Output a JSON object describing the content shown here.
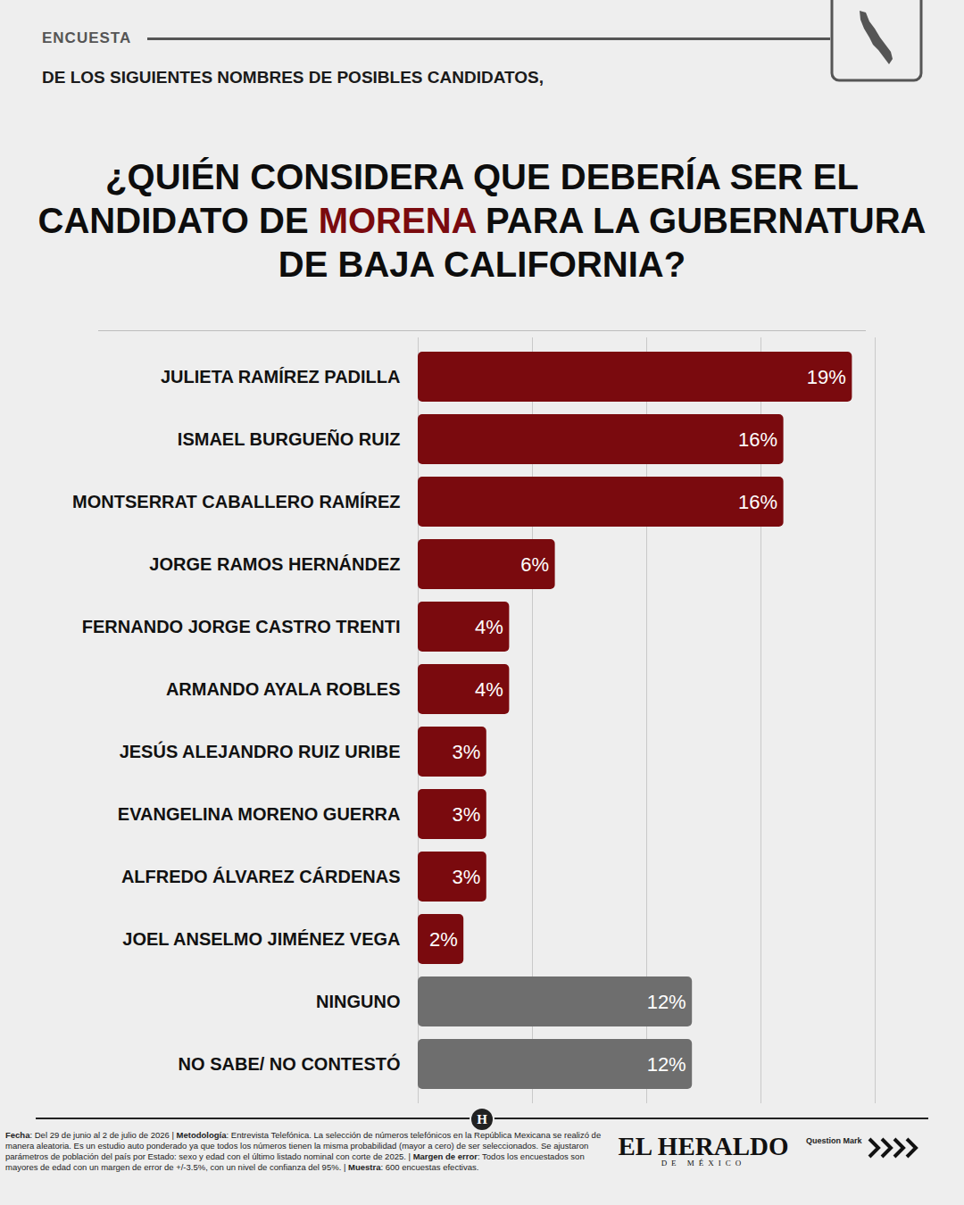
{
  "header": {
    "label": "ENCUESTA",
    "subtitle": "DE LOS SIGUIENTES NOMBRES DE POSIBLES CANDIDATOS,"
  },
  "chart_data": {
    "type": "bar",
    "orientation": "horizontal",
    "title": "¿QUIÉN CONSIDERA QUE DEBERÍA SER EL CANDIDATO DE MORENA PARA LA GUBERNATURA DE BAJA CALIFORNIA?",
    "title_highlight": "MORENA",
    "categories": [
      "JULIETA RAMÍREZ PADILLA",
      "ISMAEL BURGUEÑO RUIZ",
      "MONTSERRAT CABALLERO RAMÍREZ",
      "JORGE RAMOS HERNÁNDEZ",
      "FERNANDO JORGE CASTRO TRENTI",
      "ARMANDO AYALA ROBLES",
      "JESÚS ALEJANDRO RUIZ URIBE",
      "EVANGELINA MORENO GUERRA",
      "ALFREDO ÁLVAREZ CÁRDENAS",
      "JOEL ANSELMO JIMÉNEZ VEGA",
      "NINGUNO",
      "NO SABE/ NO CONTESTÓ"
    ],
    "values": [
      19,
      16,
      16,
      6,
      4,
      4,
      3,
      3,
      3,
      2,
      12,
      12
    ],
    "value_labels": [
      "19%",
      "16%",
      "16%",
      "6%",
      "4%",
      "4%",
      "3%",
      "3%",
      "3%",
      "2%",
      "12%",
      "12%"
    ],
    "colors": [
      "#7a0a0e",
      "#7a0a0e",
      "#7a0a0e",
      "#7a0a0e",
      "#7a0a0e",
      "#7a0a0e",
      "#7a0a0e",
      "#7a0a0e",
      "#7a0a0e",
      "#7a0a0e",
      "#6e6e6e",
      "#6e6e6e"
    ],
    "xlim": [
      0,
      20
    ],
    "xticks": [
      0,
      5,
      10,
      15,
      20
    ],
    "grid": true,
    "data_labels": true,
    "tick_labels": "y"
  },
  "footer": {
    "note": [
      {
        "label": "Fecha",
        "text": ": Del 29 de junio al 2 de julio de 2026 | "
      },
      {
        "label": "Metodología",
        "text": ": Entrevista Telefónica. La selección de números telefónicos en la República Mexicana se realizó de manera aleatoria. Es un estudio auto ponderado ya que todos los números tienen la misma probabilidad (mayor a cero) de ser seleccionados. Se ajustaron parámetros de población del país por Estado: sexo y edad con el último listado nominal con corte de 2025. | "
      },
      {
        "label": "Margen de error",
        "text": ": Todos los encuestados son mayores de edad con un margen de error de +/-3.5%, con un nivel de confianza del 95%. | "
      },
      {
        "label": "Muestra",
        "text": ": 600 encuestas efectivas."
      }
    ],
    "logo_letter": "H",
    "brand": "EL HERALDO",
    "brand_sub": "DE MÉXICO",
    "partner": "Question Mark"
  }
}
